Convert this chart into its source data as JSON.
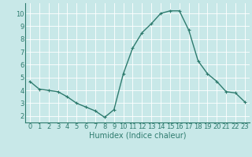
{
  "x": [
    0,
    1,
    2,
    3,
    4,
    5,
    6,
    7,
    8,
    9,
    10,
    11,
    12,
    13,
    14,
    15,
    16,
    17,
    18,
    19,
    20,
    21,
    22,
    23
  ],
  "y": [
    4.7,
    4.1,
    4.0,
    3.9,
    3.5,
    3.0,
    2.7,
    2.4,
    1.9,
    2.5,
    5.3,
    7.3,
    8.5,
    9.2,
    10.0,
    10.2,
    10.2,
    8.7,
    6.3,
    5.3,
    4.7,
    3.9,
    3.8,
    3.1
  ],
  "line_color": "#2e7b6e",
  "marker": "+",
  "marker_size": 3,
  "bg_color": "#c8e8e8",
  "grid_color": "#ffffff",
  "xlabel": "Humidex (Indice chaleur)",
  "xlim": [
    -0.5,
    23.5
  ],
  "ylim": [
    1.5,
    10.8
  ],
  "yticks": [
    2,
    3,
    4,
    5,
    6,
    7,
    8,
    9,
    10
  ],
  "xticks": [
    0,
    1,
    2,
    3,
    4,
    5,
    6,
    7,
    8,
    9,
    10,
    11,
    12,
    13,
    14,
    15,
    16,
    17,
    18,
    19,
    20,
    21,
    22,
    23
  ],
  "xlabel_fontsize": 7,
  "tick_fontsize": 6,
  "line_width": 1.0
}
